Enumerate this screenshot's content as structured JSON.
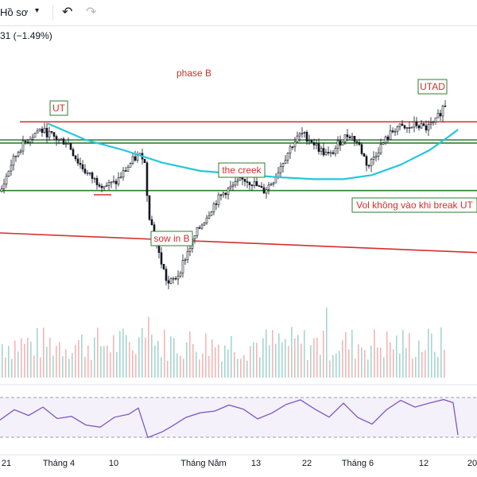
{
  "toolbar": {
    "profile_label": "Hồ sơ",
    "chevron_icon": "chevron-down-icon",
    "undo_icon": "undo-icon",
    "redo_icon": "redo-icon"
  },
  "legend": {
    "change_text": "31 (−1.49%)"
  },
  "colors": {
    "up": "#131722",
    "down": "#131722",
    "resistance": "#d32f2f",
    "support": "#2e7d32",
    "ma": "#26c6da",
    "rsi": "#7e57c2",
    "annotation_text": "#d32f2f",
    "annotation_border": "#2e7d32",
    "vol_up": "#a5d6d0",
    "vol_down": "#f4b6b6"
  },
  "chart_data": {
    "type": "candlestick",
    "x_labels": [
      "21",
      "Tháng 4",
      "10",
      "Tháng Năm",
      "13",
      "22",
      "Tháng 6",
      "12",
      "20"
    ],
    "annotations": [
      {
        "text": "phase B"
      },
      {
        "text": "UT"
      },
      {
        "text": "UTAD"
      },
      {
        "text": "the creek"
      },
      {
        "text": "sow in B"
      },
      {
        "text": "Vol không vào khi break UT"
      }
    ],
    "price_series": [
      {
        "t": 0,
        "p": 0.3
      },
      {
        "t": 0.02,
        "p": 0.55
      },
      {
        "t": 0.04,
        "p": 0.72
      },
      {
        "t": 0.06,
        "p": 0.82
      },
      {
        "t": 0.08,
        "p": 0.9
      },
      {
        "t": 0.1,
        "p": 0.86
      },
      {
        "t": 0.12,
        "p": 0.8
      },
      {
        "t": 0.14,
        "p": 0.78
      },
      {
        "t": 0.16,
        "p": 0.6
      },
      {
        "t": 0.18,
        "p": 0.48
      },
      {
        "t": 0.2,
        "p": 0.4
      },
      {
        "t": 0.22,
        "p": 0.36
      },
      {
        "t": 0.24,
        "p": 0.38
      },
      {
        "t": 0.26,
        "p": 0.5
      },
      {
        "t": 0.28,
        "p": 0.62
      },
      {
        "t": 0.3,
        "p": 0.66
      },
      {
        "t": 0.31,
        "p": 0.1
      },
      {
        "t": 0.33,
        "p": -0.28
      },
      {
        "t": 0.35,
        "p": -0.6
      },
      {
        "t": 0.37,
        "p": -0.52
      },
      {
        "t": 0.39,
        "p": -0.3
      },
      {
        "t": 0.41,
        "p": -0.1
      },
      {
        "t": 0.43,
        "p": 0.05
      },
      {
        "t": 0.45,
        "p": 0.2
      },
      {
        "t": 0.47,
        "p": 0.3
      },
      {
        "t": 0.49,
        "p": 0.36
      },
      {
        "t": 0.51,
        "p": 0.42
      },
      {
        "t": 0.53,
        "p": 0.38
      },
      {
        "t": 0.55,
        "p": 0.3
      },
      {
        "t": 0.57,
        "p": 0.4
      },
      {
        "t": 0.59,
        "p": 0.58
      },
      {
        "t": 0.61,
        "p": 0.75
      },
      {
        "t": 0.63,
        "p": 0.86
      },
      {
        "t": 0.65,
        "p": 0.8
      },
      {
        "t": 0.67,
        "p": 0.7
      },
      {
        "t": 0.69,
        "p": 0.64
      },
      {
        "t": 0.71,
        "p": 0.78
      },
      {
        "t": 0.73,
        "p": 0.86
      },
      {
        "t": 0.75,
        "p": 0.76
      },
      {
        "t": 0.77,
        "p": 0.54
      },
      {
        "t": 0.79,
        "p": 0.7
      },
      {
        "t": 0.81,
        "p": 0.82
      },
      {
        "t": 0.83,
        "p": 0.93
      },
      {
        "t": 0.85,
        "p": 0.9
      },
      {
        "t": 0.87,
        "p": 0.95
      },
      {
        "t": 0.89,
        "p": 0.91
      },
      {
        "t": 0.91,
        "p": 0.96
      },
      {
        "t": 0.93,
        "p": 1.15
      },
      {
        "t": 0.95,
        "p": 1.08
      },
      {
        "t": 0.96,
        "p": 0.82
      }
    ],
    "ma_series": [
      {
        "t": 0.1,
        "p": 0.96
      },
      {
        "t": 0.18,
        "p": 0.8
      },
      {
        "t": 0.26,
        "p": 0.7
      },
      {
        "t": 0.34,
        "p": 0.58
      },
      {
        "t": 0.42,
        "p": 0.5
      },
      {
        "t": 0.5,
        "p": 0.47
      },
      {
        "t": 0.58,
        "p": 0.44
      },
      {
        "t": 0.66,
        "p": 0.42
      },
      {
        "t": 0.72,
        "p": 0.42
      },
      {
        "t": 0.78,
        "p": 0.46
      },
      {
        "t": 0.84,
        "p": 0.56
      },
      {
        "t": 0.9,
        "p": 0.7
      },
      {
        "t": 0.94,
        "p": 0.83
      },
      {
        "t": 0.96,
        "p": 0.9
      }
    ],
    "lines": [
      {
        "kind": "resistance",
        "p_start": 0.975,
        "p_end": 0.975
      },
      {
        "kind": "support",
        "p_start": 0.8,
        "p_end": 0.8
      },
      {
        "kind": "support",
        "p_start": 0.77,
        "p_end": 0.77
      },
      {
        "kind": "support",
        "p_start": 0.31,
        "p_end": 0.31
      },
      {
        "kind": "trendline",
        "p_start": -0.1,
        "p_end": -0.29
      }
    ],
    "rsi_series": [
      {
        "t": 0.0,
        "v": 0.4
      },
      {
        "t": 0.03,
        "v": 0.65
      },
      {
        "t": 0.06,
        "v": 0.55
      },
      {
        "t": 0.09,
        "v": 0.7
      },
      {
        "t": 0.12,
        "v": 0.45
      },
      {
        "t": 0.15,
        "v": 0.55
      },
      {
        "t": 0.18,
        "v": 0.25
      },
      {
        "t": 0.21,
        "v": 0.3
      },
      {
        "t": 0.24,
        "v": 0.45
      },
      {
        "t": 0.27,
        "v": 0.6
      },
      {
        "t": 0.29,
        "v": 0.7
      },
      {
        "t": 0.31,
        "v": 0.05
      },
      {
        "t": 0.34,
        "v": 0.12
      },
      {
        "t": 0.36,
        "v": 0.3
      },
      {
        "t": 0.39,
        "v": 0.55
      },
      {
        "t": 0.42,
        "v": 0.62
      },
      {
        "t": 0.45,
        "v": 0.7
      },
      {
        "t": 0.48,
        "v": 0.78
      },
      {
        "t": 0.51,
        "v": 0.72
      },
      {
        "t": 0.54,
        "v": 0.52
      },
      {
        "t": 0.57,
        "v": 0.6
      },
      {
        "t": 0.6,
        "v": 0.88
      },
      {
        "t": 0.63,
        "v": 0.95
      },
      {
        "t": 0.66,
        "v": 0.75
      },
      {
        "t": 0.69,
        "v": 0.45
      },
      {
        "t": 0.72,
        "v": 0.8
      },
      {
        "t": 0.75,
        "v": 0.55
      },
      {
        "t": 0.78,
        "v": 0.3
      },
      {
        "t": 0.81,
        "v": 0.72
      },
      {
        "t": 0.84,
        "v": 0.88
      },
      {
        "t": 0.87,
        "v": 0.7
      },
      {
        "t": 0.9,
        "v": 0.82
      },
      {
        "t": 0.93,
        "v": 0.98
      },
      {
        "t": 0.95,
        "v": 0.9
      },
      {
        "t": 0.96,
        "v": 0.08
      }
    ]
  }
}
